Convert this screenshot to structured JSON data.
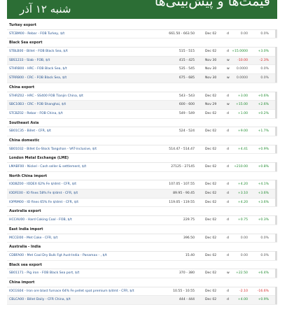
{
  "banner": {
    "title": "قیمت‌ها و پیش‌بینی‌ها",
    "date": "شنبه ۱۲ آذر",
    "color": "#2c6e35"
  },
  "colors": {
    "positive": "#1e8a2e",
    "negative": "#d22a2a",
    "link": "#1f4e8c"
  },
  "sections": [
    {
      "header": "Turkey export",
      "rows": [
        {
          "name": "STCBM00 - Rebar - FOB Turkey, $/t",
          "range": "661.50 - 663.50",
          "date": "Dec 02",
          "freq": "d",
          "change": "0.00",
          "pct": "0.0%",
          "trend": "zero"
        }
      ]
    },
    {
      "header": "Black Sea export",
      "rows": [
        {
          "name": "STBLB00 - Billet - FOB Black Sea, $/t",
          "range": "515 - 515",
          "date": "Dec 02",
          "freq": "d",
          "change": "+15.0000",
          "pct": "+3.0%",
          "trend": "pos"
        },
        {
          "name": "SBS1233 - Slab - FOB, $/t",
          "range": "415 - 425",
          "date": "Nov 30",
          "freq": "w",
          "change": "-10.00",
          "pct": "-2.3%",
          "trend": "neg"
        },
        {
          "name": "STHRB00 - HRC - FOB Black Sea, $/t",
          "range": "535 - 545",
          "date": "Nov 30",
          "freq": "w",
          "change": "0.0000",
          "pct": "0.0%",
          "trend": "zero"
        },
        {
          "name": "STRRB00 - CRC - FOB Black Sea, $/t",
          "range": "675 - 685",
          "date": "Nov 30",
          "freq": "w",
          "change": "0.0000",
          "pct": "0.0%",
          "trend": "zero"
        }
      ]
    },
    {
      "header": "China export",
      "rows": [
        {
          "name": "STHRZ02 - HRC - SS400 FOB Tianjin China, $/t",
          "range": "543 - 543",
          "date": "Dec 02",
          "freq": "d",
          "change": "+3.00",
          "pct": "+0.6%",
          "trend": "pos"
        },
        {
          "name": "SBC10B3 - CRC - FOB Shanghai, $/t",
          "range": "600 - 600",
          "date": "Nov 29",
          "freq": "w",
          "change": "+15.00",
          "pct": "+2.6%",
          "trend": "pos"
        },
        {
          "name": "STCBZ02 - Rebar - FOB China, $/t",
          "range": "549 - 549",
          "date": "Dec 02",
          "freq": "d",
          "change": "+1.00",
          "pct": "+0.2%",
          "trend": "pos"
        }
      ]
    },
    {
      "header": "Southeast Asia",
      "rows": [
        {
          "name": "SB01C35 - Billet - CFR, $/t",
          "range": "524 - 524",
          "date": "Dec 02",
          "freq": "d",
          "change": "+9.00",
          "pct": "+1.7%",
          "trend": "pos"
        }
      ]
    },
    {
      "header": "China domestic",
      "rows": [
        {
          "name": "SB01032 - Billet Ex-Stock Tangshan - VAT-inclusive, $/t",
          "range": "514.47 - 514.47",
          "date": "Dec 02",
          "freq": "d",
          "change": "+4.41",
          "pct": "+0.9%",
          "trend": "pos"
        }
      ]
    },
    {
      "header": "London Metal Exchange (LME)",
      "rows": [
        {
          "name": "LMABF00 - Nickel - Cash seller & settlement, $/t",
          "range": "27125 - 27145",
          "date": "Dec 02",
          "freq": "d",
          "change": "+210.00",
          "pct": "+0.8%",
          "trend": "pos"
        }
      ]
    },
    {
      "header": "North China import",
      "rows": [
        {
          "name": "IODBZ00 - IODEX 62% Fe $/dmt - CFR, $/t",
          "range": "107.05 - 107.55",
          "date": "Dec 02",
          "freq": "d",
          "change": "+4.20",
          "pct": "+4.1%",
          "trend": "pos"
        },
        {
          "name": "IODFE00 - IO fines 58% Fe $/dmt - CFR, $/t",
          "range": "89.95 - 90.45",
          "date": "Dec 02",
          "freq": "d",
          "change": "+3.10",
          "pct": "+3.6%",
          "trend": "pos"
        },
        {
          "name": "IOPRM00 - IO fines 65% Fe $/dmt - CFR, $/t",
          "range": "119.05 - 119.55",
          "date": "Dec 02",
          "freq": "d",
          "change": "+4.20",
          "pct": "+3.6%",
          "trend": "pos"
        }
      ]
    },
    {
      "header": "Australia export",
      "rows": [
        {
          "name": "HCCAU00 - Hard Coking Coal - FOB, $/t",
          "range": "229.75",
          "date": "Dec 02",
          "freq": "d",
          "change": "+0.75",
          "pct": "+0.3%",
          "trend": "pos"
        }
      ]
    },
    {
      "header": "East India import",
      "rows": [
        {
          "name": "MCCEI00 - Met Coke - CFR, $/t",
          "range": "396.50",
          "date": "Dec 02",
          "freq": "d",
          "change": "0.00",
          "pct": "0.0%",
          "trend": "zero"
        }
      ]
    },
    {
      "header": "Australia - India",
      "rows": [
        {
          "name": "CDBFA00 - Met Coal Dry Bulk Fgt Aust-India - Panamax - , $/t",
          "range": "15.40",
          "date": "Dec 02",
          "freq": "d",
          "change": "0.00",
          "pct": "0.0%",
          "trend": "zero"
        }
      ]
    },
    {
      "header": "Black sea export",
      "rows": [
        {
          "name": "SB01171 - Pig iron - FOB Black Sea port, $/t",
          "range": "370 - 380",
          "date": "Dec 02",
          "freq": "w",
          "change": "+22.50",
          "pct": "+6.4%",
          "trend": "pos"
        }
      ]
    },
    {
      "header": "China import",
      "rows": [
        {
          "name": "IOCGS04 - Iron ore blast furnace 64% Fe pellet spot premium $/dmt - CFR, $/t",
          "range": "10.55 - 10.55",
          "date": "Dec 02",
          "freq": "d",
          "change": "-2.10",
          "pct": "-16.6%",
          "trend": "neg"
        },
        {
          "name": "CBLCA00 - Billet Daily - CFR China, $/t",
          "range": "444 - 444",
          "date": "Dec 02",
          "freq": "d",
          "change": "+4.00",
          "pct": "+0.9%",
          "trend": "pos"
        }
      ]
    }
  ]
}
